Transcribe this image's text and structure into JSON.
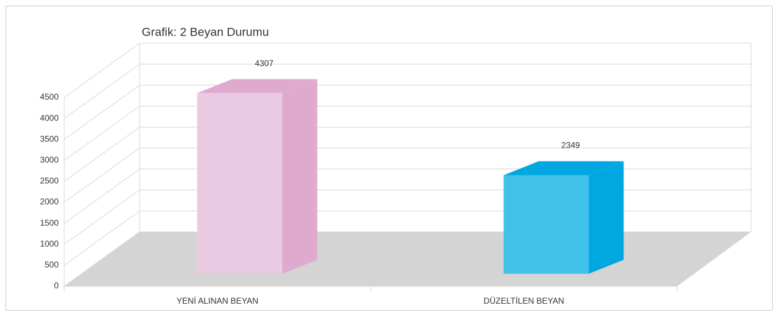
{
  "chart_data": {
    "type": "bar3d",
    "title": "Grafik: 2 Beyan Durumu",
    "categories": [
      "YENİ ALINAN BEYAN",
      "DÜZELTİLEN BEYAN"
    ],
    "values": [
      4307,
      2349
    ],
    "colors": [
      "#eacae2",
      "#40c1ea"
    ],
    "side_colors": [
      "#e0a9ce",
      "#00a7e1"
    ],
    "ylim": [
      0,
      4500
    ],
    "yticks": [
      0,
      500,
      1000,
      1500,
      2000,
      2500,
      3000,
      3500,
      4000,
      4500
    ],
    "grid": true
  }
}
